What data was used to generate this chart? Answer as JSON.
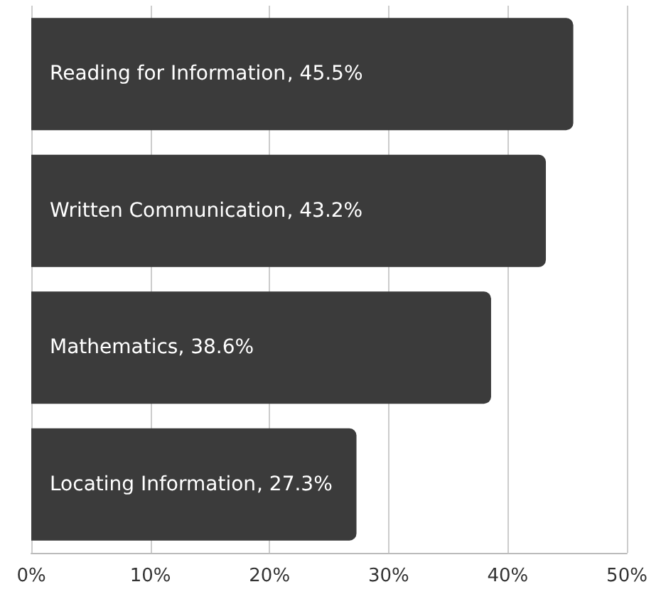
{
  "chart_data": {
    "type": "bar",
    "orientation": "horizontal",
    "categories": [
      "Reading for Information",
      "Written Communication",
      "Mathematics",
      "Locating Information"
    ],
    "values": [
      45.5,
      43.2,
      38.6,
      27.3
    ],
    "value_labels": [
      ", 45.5%",
      ", 43.2%",
      ", 38.6%",
      ", 27.3%"
    ],
    "color": "#3b3b3b",
    "xlim": [
      0,
      50
    ],
    "xticks": [
      {
        "value": 0,
        "label": "0%"
      },
      {
        "value": 10,
        "label": "10%"
      },
      {
        "value": 20,
        "label": "20%"
      },
      {
        "value": 30,
        "label": "30%"
      },
      {
        "value": 40,
        "label": "40%"
      },
      {
        "value": 50,
        "label": "50%"
      }
    ],
    "grid": "x",
    "tick_labels": "x"
  }
}
